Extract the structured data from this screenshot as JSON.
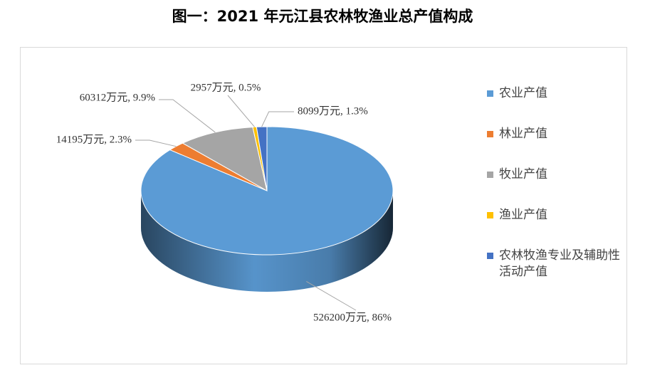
{
  "chart_data": {
    "type": "pie",
    "title": "图一：2021 年元江县农林牧渔业总产值构成",
    "categories": [
      "农业产值",
      "林业产值",
      "牧业产值",
      "渔业产值",
      "农林牧渔专业及辅助性活动产值"
    ],
    "values": [
      526200,
      14195,
      60312,
      2957,
      8099
    ],
    "value_labels": [
      "526200万元, 86%",
      "14195万元, 2.3%",
      "60312万元, 9.9%",
      "2957万元, 0.5%",
      "8099万元, 1.3%"
    ],
    "colors": [
      "#5b9bd5",
      "#ed7d31",
      "#a5a5a5",
      "#ffc000",
      "#4472c4"
    ],
    "legend": "right"
  }
}
